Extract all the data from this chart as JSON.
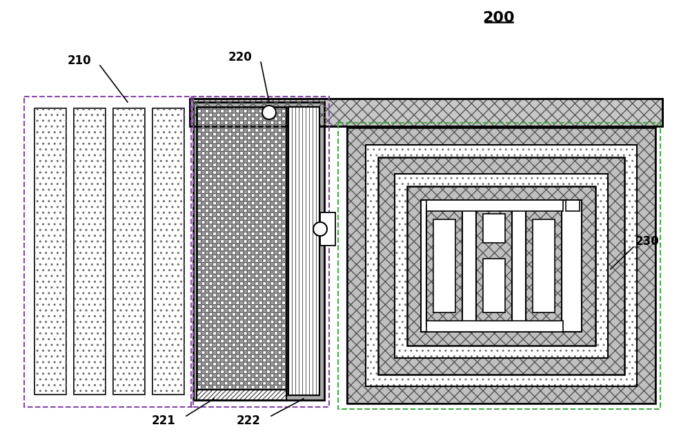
{
  "title": "200",
  "bg_color": "#ffffff",
  "label_210": "210",
  "label_220": "220",
  "label_221": "221",
  "label_222": "222",
  "label_230": "230",
  "fig_width": 10.0,
  "fig_height": 6.48
}
